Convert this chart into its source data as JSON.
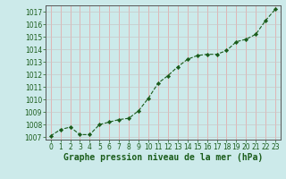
{
  "x": [
    0,
    1,
    2,
    3,
    4,
    5,
    6,
    7,
    8,
    9,
    10,
    11,
    12,
    13,
    14,
    15,
    16,
    17,
    18,
    19,
    20,
    21,
    22,
    23
  ],
  "y": [
    1007.1,
    1007.6,
    1007.8,
    1007.2,
    1007.2,
    1008.0,
    1008.2,
    1008.4,
    1008.5,
    1009.1,
    1010.1,
    1011.3,
    1011.9,
    1012.6,
    1013.2,
    1013.5,
    1013.6,
    1013.6,
    1013.9,
    1014.6,
    1014.8,
    1015.2,
    1016.3,
    1017.2
  ],
  "line_color": "#1a5c1a",
  "marker_color": "#1a5c1a",
  "bg_color": "#cceaea",
  "grid_color_v": "#e8a0a0",
  "grid_color_h": "#c8c8c8",
  "xlabel": "Graphe pression niveau de la mer (hPa)",
  "xlabel_color": "#1a5c1a",
  "tick_color": "#1a5c1a",
  "spine_color": "#555555",
  "ylim": [
    1006.8,
    1017.5
  ],
  "yticks": [
    1007,
    1008,
    1009,
    1010,
    1011,
    1012,
    1013,
    1014,
    1015,
    1016,
    1017
  ],
  "xticks": [
    0,
    1,
    2,
    3,
    4,
    5,
    6,
    7,
    8,
    9,
    10,
    11,
    12,
    13,
    14,
    15,
    16,
    17,
    18,
    19,
    20,
    21,
    22,
    23
  ],
  "font_size": 5.5,
  "label_font_size": 7.0,
  "xlim": [
    -0.5,
    23.5
  ]
}
